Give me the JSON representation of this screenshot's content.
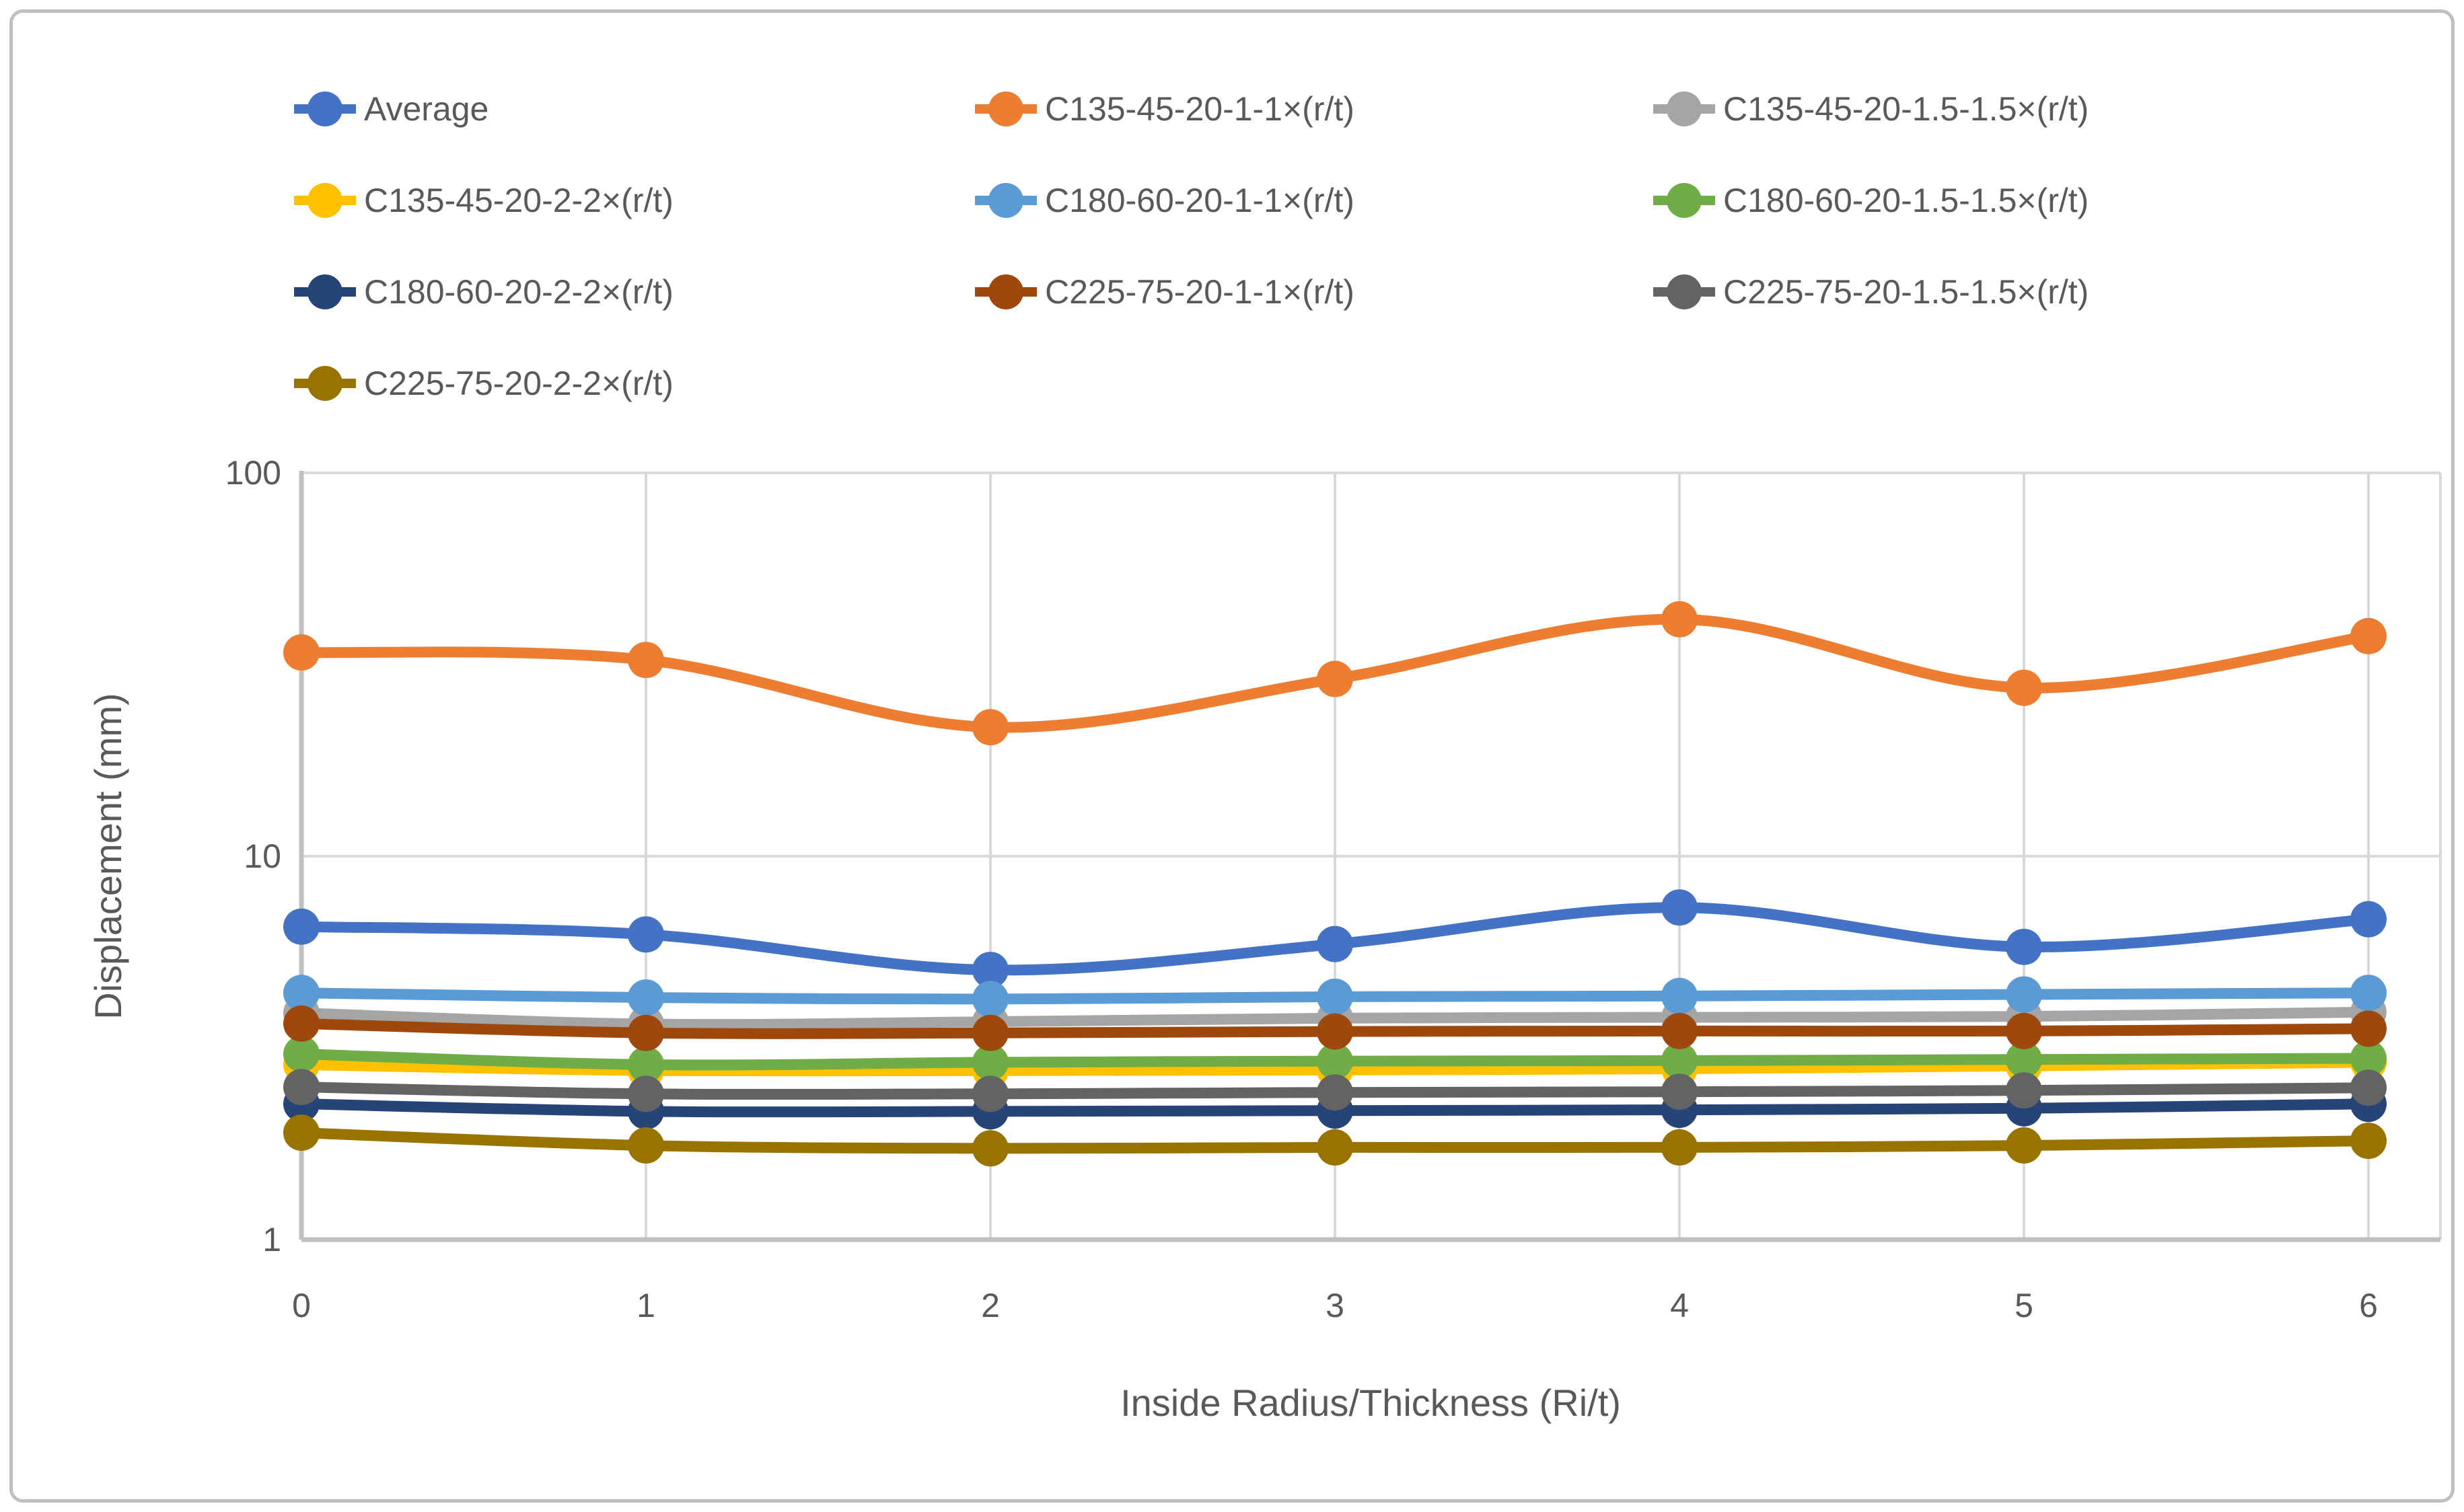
{
  "colors": {
    "grid": "#D9D9D9",
    "axis": "#BFBFBF",
    "text": "#595959",
    "frame_border": "#BFBFBF",
    "background": "#FFFFFF"
  },
  "chart_data": {
    "type": "line",
    "title": "",
    "xlabel": "Inside Radius/Thickness (Ri/t)",
    "ylabel": "Displacement (mm)",
    "x": [
      0,
      1,
      2,
      3,
      4,
      5,
      6
    ],
    "x_ticks": [
      "0",
      "1",
      "2",
      "3",
      "4",
      "5",
      "6"
    ],
    "y_ticks": [
      "1",
      "10",
      "100"
    ],
    "y_tick_values": [
      1,
      10,
      100
    ],
    "y_scale": "log",
    "ylim": [
      1,
      100
    ],
    "xlim": [
      0,
      6.2
    ],
    "grid": true,
    "legend_position": "top-left",
    "legend_columns": 3,
    "line_smoothing": true,
    "series": [
      {
        "name": "Average",
        "color": "#4472C4",
        "values": [
          6.55,
          6.25,
          5.05,
          5.9,
          7.35,
          5.8,
          6.85
        ]
      },
      {
        "name": "C135-45-20-1-1×(r/t)",
        "color": "#ED7D31",
        "values": [
          34.0,
          32.5,
          21.7,
          29.0,
          41.5,
          27.5,
          37.5
        ]
      },
      {
        "name": "C135-45-20-1.5-1.5×(r/t)",
        "color": "#A5A5A5",
        "values": [
          3.9,
          3.65,
          3.7,
          3.78,
          3.8,
          3.82,
          3.92
        ]
      },
      {
        "name": "C135-45-20-2-2×(r/t)",
        "color": "#FFC000",
        "values": [
          2.86,
          2.76,
          2.76,
          2.77,
          2.79,
          2.84,
          2.9
        ]
      },
      {
        "name": "C180-60-20-1-1×(r/t)",
        "color": "#5B9BD5",
        "values": [
          4.4,
          4.28,
          4.24,
          4.3,
          4.32,
          4.36,
          4.4
        ]
      },
      {
        "name": "C180-60-20-1.5-1.5×(r/t)",
        "color": "#70AD47",
        "values": [
          3.05,
          2.86,
          2.9,
          2.92,
          2.93,
          2.95,
          2.97
        ]
      },
      {
        "name": "C180-60-20-2-2×(r/t)",
        "color": "#264478",
        "values": [
          2.26,
          2.16,
          2.16,
          2.17,
          2.18,
          2.2,
          2.26
        ]
      },
      {
        "name": "C225-75-20-1-1×(r/t)",
        "color": "#9E480E",
        "values": [
          3.66,
          3.46,
          3.46,
          3.49,
          3.5,
          3.5,
          3.55
        ]
      },
      {
        "name": "C225-75-20-1.5-1.5×(r/t)",
        "color": "#636363",
        "values": [
          2.5,
          2.4,
          2.4,
          2.42,
          2.43,
          2.45,
          2.49
        ]
      },
      {
        "name": "C225-75-20-2-2×(r/t)",
        "color": "#997300",
        "values": [
          1.9,
          1.76,
          1.73,
          1.74,
          1.74,
          1.76,
          1.81
        ]
      }
    ]
  }
}
